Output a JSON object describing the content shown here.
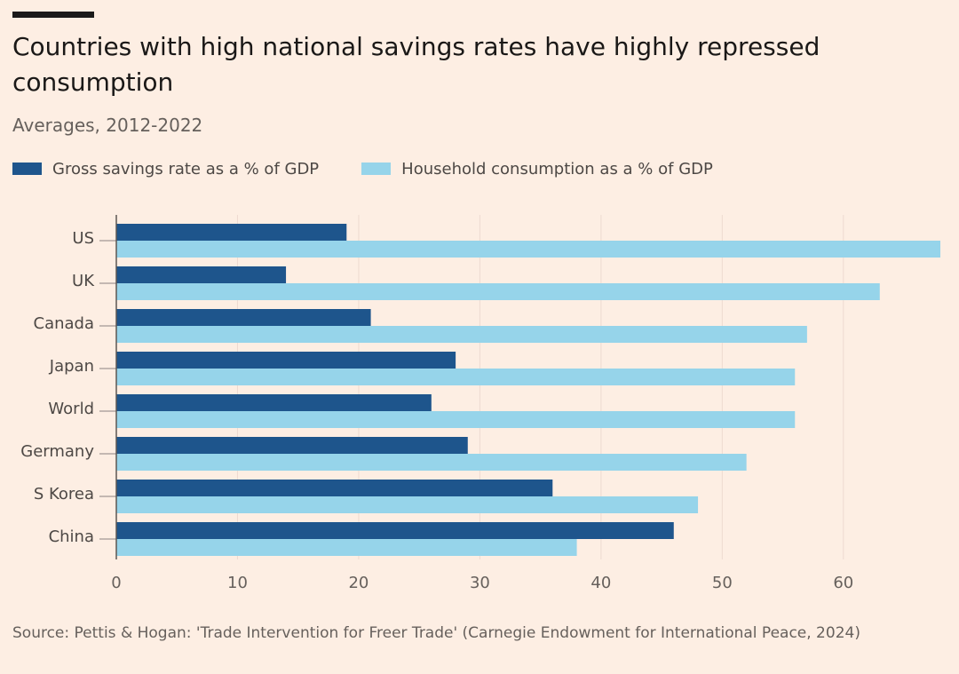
{
  "header": {
    "title": "Countries with high national savings rates have highly repressed consumption",
    "subtitle": "Averages, 2012-2022"
  },
  "legend": {
    "items": [
      {
        "label": "Gross savings rate as a % of GDP",
        "color": "#1e558c"
      },
      {
        "label": "Household consumption as a % of GDP",
        "color": "#96d4ea"
      }
    ]
  },
  "footer": {
    "source": "Source: Pettis & Hogan: 'Trade Intervention for Freer Trade' (Carnegie Endowment for International Peace, 2024)"
  },
  "chart_data": {
    "type": "bar",
    "orientation": "horizontal",
    "categories": [
      "US",
      "UK",
      "Canada",
      "Japan",
      "World",
      "Germany",
      "S Korea",
      "China"
    ],
    "series": [
      {
        "name": "Gross savings rate as a % of GDP",
        "color": "#1e558c",
        "values": [
          19,
          14,
          21,
          28,
          26,
          29,
          36,
          46
        ]
      },
      {
        "name": "Household consumption as a % of GDP",
        "color": "#96d4ea",
        "values": [
          68,
          63,
          57,
          56,
          56,
          52,
          48,
          38
        ]
      }
    ],
    "xlim": [
      0,
      68
    ],
    "xticks": [
      0,
      10,
      20,
      30,
      40,
      50,
      60
    ],
    "grid": "vertical",
    "legend_position": "top-left"
  }
}
